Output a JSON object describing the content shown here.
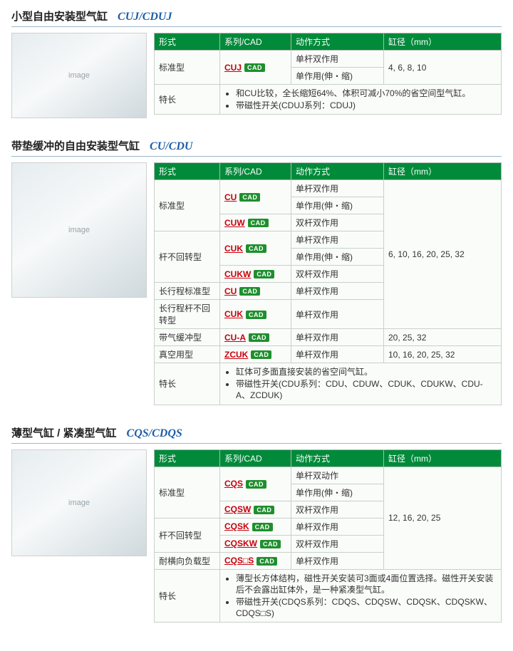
{
  "colors": {
    "header_bg": "#008a3a",
    "header_text": "#ffffff",
    "link": "#c7000b",
    "cad_bg": "#1f8f2e",
    "code": "#1e5fa8",
    "rule": "#9db8ca",
    "border": "#c8d0c9"
  },
  "labels": {
    "col_type": "形式",
    "col_series": "系列/CAD",
    "col_action": "动作方式",
    "col_bore": "缸径（mm）",
    "cad": "CAD",
    "feature": "特长"
  },
  "sections": [
    {
      "title": "小型自由安装型气缸",
      "code": "CUJ/CDUJ",
      "image_h": "short",
      "cols": [
        "type",
        "series",
        "action",
        "bore"
      ],
      "rows": [
        {
          "type": "标准型",
          "type_rowspan": 2,
          "series": "CUJ",
          "series_rowspan": 2,
          "action": "单杆双作用",
          "bore": "4, 6, 8, 10",
          "bore_rowspan": 2
        },
        {
          "action": "单作用(伸・缩)"
        }
      ],
      "features": [
        "和CU比较，全长缩短64%、体积可减小70%的省空间型气缸。",
        "带磁性开关(CDUJ系列：CDUJ)"
      ]
    },
    {
      "title": "带垫缓冲的自由安装型气缸",
      "code": "CU/CDU",
      "image_h": "tall",
      "cols": [
        "type",
        "series",
        "action",
        "bore"
      ],
      "rows": [
        {
          "type": "标准型",
          "type_rowspan": 3,
          "series": "CU",
          "series_rowspan": 2,
          "action": "单杆双作用",
          "bore": "6, 10, 16, 20, 25, 32",
          "bore_rowspan": 8
        },
        {
          "action": "单作用(伸・缩)"
        },
        {
          "series": "CUW",
          "action": "双杆双作用"
        },
        {
          "type": "杆不回转型",
          "type_rowspan": 3,
          "series": "CUK",
          "series_rowspan": 2,
          "action": "单杆双作用"
        },
        {
          "action": "单作用(伸・缩)"
        },
        {
          "series": "CUKW",
          "action": "双杆双作用"
        },
        {
          "type": "长行程标准型",
          "series": "CU",
          "action": "单杆双作用"
        },
        {
          "type": "长行程杆不回转型",
          "series": "CUK",
          "action": "单杆双作用"
        },
        {
          "type": "带气缓冲型",
          "series": "CU-A",
          "action": "单杆双作用",
          "bore": "20, 25, 32"
        },
        {
          "type": "真空用型",
          "series": "ZCUK",
          "action": "单杆双作用",
          "bore": "10, 16, 20, 25, 32"
        }
      ],
      "features": [
        "缸体可多面直接安装的省空间气缸。",
        "带磁性开关(CDU系列：CDU、CDUW、CDUK、CDUKW、CDU-A、ZCDUK)"
      ]
    },
    {
      "title": "薄型气缸 / 紧凑型气缸",
      "code": "CQS/CDQS",
      "image_h": "med",
      "cols": [
        "type",
        "series",
        "action",
        "bore"
      ],
      "rows": [
        {
          "type": "标准型",
          "type_rowspan": 3,
          "series": "CQS",
          "series_rowspan": 2,
          "action": "单杆双动作",
          "bore": "12, 16, 20, 25",
          "bore_rowspan": 6
        },
        {
          "action": "单作用(伸・缩)"
        },
        {
          "series": "CQSW",
          "action": "双杆双作用"
        },
        {
          "type": "杆不回转型",
          "type_rowspan": 2,
          "series": "CQSK",
          "action": "单杆双作用"
        },
        {
          "series": "CQSKW",
          "action": "双杆双作用"
        },
        {
          "type": "耐横向负载型",
          "series": "CQS□S",
          "action": "单杆双作用"
        }
      ],
      "features": [
        "薄型长方体结构，磁性开关安装可3面或4面位置选择。磁性开关安装后不会露出缸体外，是一种紧凑型气缸。",
        "带磁性开关(CDQS系列：CDQS、CDQSW、CDQSK、CDQSKW、CDQS□S)"
      ]
    }
  ]
}
